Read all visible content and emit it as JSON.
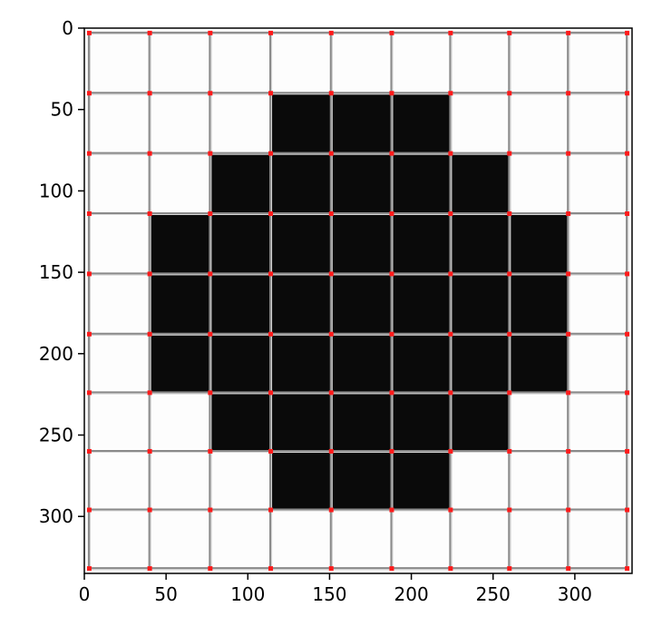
{
  "chart_data": {
    "type": "heatmap",
    "title": "",
    "xlabel": "",
    "ylabel": "",
    "xlim": [
      0,
      335
    ],
    "ylim": [
      335,
      0
    ],
    "x_ticks": [
      0,
      50,
      100,
      150,
      200,
      250,
      300
    ],
    "y_ticks": [
      0,
      50,
      100,
      150,
      200,
      250,
      300
    ],
    "x_tick_labels": [
      "0",
      "50",
      "100",
      "150",
      "200",
      "250",
      "300"
    ],
    "y_tick_labels": [
      "0",
      "50",
      "100",
      "150",
      "200",
      "250",
      "300"
    ],
    "grid_lines": [
      3,
      40,
      77,
      114,
      151,
      188,
      224,
      260,
      296,
      332
    ],
    "cells": [
      [
        0,
        0,
        0,
        0,
        0,
        0,
        0,
        0,
        0
      ],
      [
        0,
        0,
        0,
        1,
        1,
        1,
        0,
        0,
        0
      ],
      [
        0,
        0,
        1,
        1,
        1,
        1,
        1,
        0,
        0
      ],
      [
        0,
        1,
        1,
        1,
        1,
        1,
        1,
        1,
        0
      ],
      [
        0,
        1,
        1,
        1,
        1,
        1,
        1,
        1,
        0
      ],
      [
        0,
        1,
        1,
        1,
        1,
        1,
        1,
        1,
        0
      ],
      [
        0,
        0,
        1,
        1,
        1,
        1,
        1,
        0,
        0
      ],
      [
        0,
        0,
        0,
        1,
        1,
        1,
        0,
        0,
        0
      ],
      [
        0,
        0,
        0,
        0,
        0,
        0,
        0,
        0,
        0
      ]
    ],
    "colors": {
      "filled": "#0a0a0a",
      "empty": "#fdfdfd",
      "grid": "#8a8a8a",
      "marker": "#ff1a1a"
    }
  }
}
